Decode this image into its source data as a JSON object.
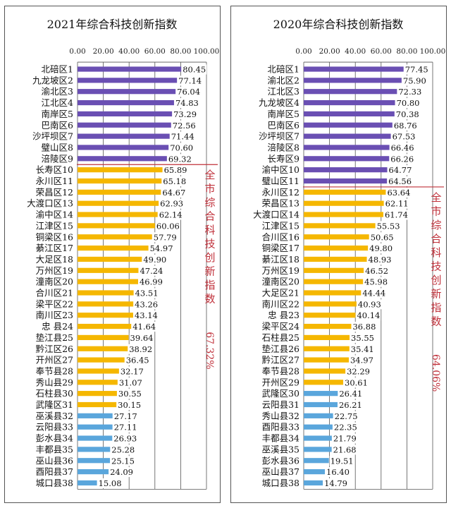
{
  "chart_data": [
    {
      "type": "bar",
      "orientation": "horizontal",
      "title": "2021年综合科技创新指数",
      "xlim": [
        0,
        100
      ],
      "ticks": [
        "0.00",
        "20.00",
        "40.00",
        "60.00",
        "80.00",
        "100.00"
      ],
      "grid": true,
      "annotation": {
        "text": "全市综合科技创新指数",
        "value": "67.32%",
        "value_num": 67.32
      },
      "colors": {
        "above": "#6a4fb3",
        "middle": "#f5b700",
        "low": "#5aa6dc",
        "line": "#c0303a",
        "annotation": "#c0303a"
      },
      "categories": [
        "北碚区1",
        "九龙坡区2",
        "渝北区3",
        "江北区4",
        "南岸区5",
        "巴南区6",
        "沙坪坝区7",
        "璧山区8",
        "涪陵区9",
        "长寿区10",
        "永川区11",
        "荣昌区12",
        "大渡口区13",
        "渝中区14",
        "江津区15",
        "铜梁区16",
        "綦江区17",
        "大足区18",
        "万州区19",
        "潼南区20",
        "合川区21",
        "梁平区22",
        "南川区23",
        "忠 县24",
        "垫江县25",
        "黔江区26",
        "开州区27",
        "奉节县28",
        "秀山县29",
        "石柱县30",
        "武隆区31",
        "巫溪县32",
        "云阳县33",
        "彭水县34",
        "丰都县35",
        "巫山县36",
        "酉阳县37",
        "城口县38"
      ],
      "values": [
        80.45,
        77.14,
        76.04,
        74.83,
        73.29,
        72.56,
        71.44,
        70.6,
        69.32,
        65.89,
        65.18,
        64.67,
        62.93,
        62.14,
        60.06,
        57.79,
        54.97,
        49.9,
        47.24,
        46.99,
        43.51,
        43.26,
        43.14,
        41.64,
        39.64,
        38.92,
        36.45,
        32.17,
        31.07,
        30.55,
        30.15,
        27.17,
        27.11,
        26.93,
        25.28,
        25.15,
        24.09,
        15.08
      ],
      "labels": [
        "80.45",
        "77.14",
        "76.04",
        "74.83",
        "73.29",
        "72.56",
        "71.44",
        "70.60",
        "69.32",
        "65.89",
        "65.18",
        "64.67",
        "62.93",
        "62.14",
        "60.06",
        "57.79",
        "54.97",
        "49.90",
        "47.24",
        "46.99",
        "43.51",
        "43.26",
        "43.14",
        "41.64",
        "39.64",
        "38.92",
        "36.45",
        "32.17",
        "31.07",
        "30.55",
        "30.15",
        "27.17",
        "27.11",
        "26.93",
        "25.28",
        "25.15",
        "24.09",
        "15.08"
      ],
      "color_groups": [
        "above",
        "above",
        "above",
        "above",
        "above",
        "above",
        "above",
        "above",
        "above",
        "middle",
        "middle",
        "middle",
        "middle",
        "middle",
        "middle",
        "middle",
        "middle",
        "middle",
        "middle",
        "middle",
        "middle",
        "middle",
        "middle",
        "middle",
        "middle",
        "middle",
        "middle",
        "middle",
        "middle",
        "middle",
        "middle",
        "low",
        "low",
        "low",
        "low",
        "low",
        "low",
        "low"
      ]
    },
    {
      "type": "bar",
      "orientation": "horizontal",
      "title": "2020年综合科技创新指数",
      "xlim": [
        0,
        100
      ],
      "ticks": [
        "0.00",
        "20.00",
        "40.00",
        "60.00",
        "80.00",
        "100.00"
      ],
      "grid": true,
      "annotation": {
        "text": "全市综合科技创新指数",
        "value": "64.06%",
        "value_num": 64.06
      },
      "colors": {
        "above": "#6a4fb3",
        "middle": "#f5b700",
        "low": "#5aa6dc",
        "line": "#c0303a",
        "annotation": "#c0303a"
      },
      "categories": [
        "北碚区1",
        "渝北区2",
        "江北区3",
        "九龙坡区4",
        "南岸区5",
        "巴南区6",
        "沙坪坝区7",
        "涪陵区8",
        "长寿区9",
        "渝中区10",
        "璧山区11",
        "永川区12",
        "荣昌区13",
        "大渡口区14",
        "江津区15",
        "合川区16",
        "铜梁区17",
        "綦江区18",
        "万州区19",
        "潼南区20",
        "大足区21",
        "南川区22",
        "忠 县23",
        "梁平区24",
        "石柱县25",
        "垫江县26",
        "黔江区27",
        "奉节县28",
        "开州区29",
        "武隆区30",
        "云阳县31",
        "秀山县32",
        "酉阳县33",
        "丰都县34",
        "巫溪县35",
        "彭水县36",
        "巫山县37",
        "城口县38"
      ],
      "values": [
        77.45,
        75.9,
        72.33,
        70.8,
        70.38,
        68.76,
        67.53,
        66.46,
        66.26,
        64.77,
        64.56,
        63.64,
        62.11,
        61.74,
        55.53,
        50.65,
        49.8,
        48.93,
        46.52,
        45.98,
        44.44,
        40.93,
        40.14,
        36.88,
        35.55,
        35.41,
        34.97,
        32.29,
        30.61,
        26.41,
        26.21,
        22.75,
        22.35,
        21.79,
        21.68,
        19.51,
        16.4,
        14.79
      ],
      "labels": [
        "77.45",
        "75.90",
        "72.33",
        "70.80",
        "70.38",
        "68.76",
        "67.53",
        "66.46",
        "66.26",
        "64.77",
        "64.56",
        "63.64",
        "62.11",
        "61.74",
        "55.53",
        "50.65",
        "49.80",
        "48.93",
        "46.52",
        "45.98",
        "44.44",
        "40.93",
        "40.14",
        "36.88",
        "35.55",
        "35.41",
        "34.97",
        "32.29",
        "30.61",
        "26.41",
        "26.21",
        "22.75",
        "22.35",
        "21.79",
        "21.68",
        "19.51",
        "16.40",
        "14.79"
      ],
      "color_groups": [
        "above",
        "above",
        "above",
        "above",
        "above",
        "above",
        "above",
        "above",
        "above",
        "above",
        "above",
        "middle",
        "middle",
        "middle",
        "middle",
        "middle",
        "middle",
        "middle",
        "middle",
        "middle",
        "middle",
        "middle",
        "middle",
        "middle",
        "middle",
        "middle",
        "middle",
        "middle",
        "middle",
        "low",
        "low",
        "low",
        "low",
        "low",
        "low",
        "low",
        "low",
        "low"
      ]
    }
  ]
}
